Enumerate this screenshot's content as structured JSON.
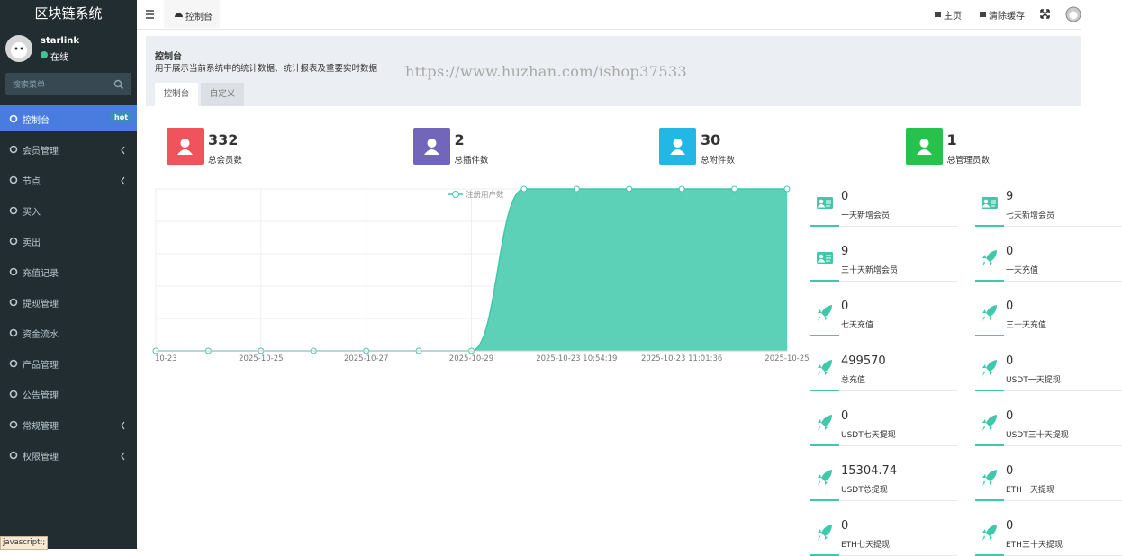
{
  "sidebar": {
    "brand": "区块链系统",
    "user": {
      "name": "starlink",
      "status": "在线"
    },
    "search_placeholder": "搜索菜单",
    "menu": [
      {
        "label": "控制台",
        "badge": "hot",
        "active": true
      },
      {
        "label": "会员管理",
        "submenu": true
      },
      {
        "label": "节点",
        "submenu": true
      },
      {
        "label": "买入"
      },
      {
        "label": "卖出"
      },
      {
        "label": "充值记录"
      },
      {
        "label": "提现管理"
      },
      {
        "label": "资金流水"
      },
      {
        "label": "产品管理"
      },
      {
        "label": "公告管理"
      },
      {
        "label": "常规管理",
        "submenu": true
      },
      {
        "label": "权限管理",
        "submenu": true
      }
    ]
  },
  "topbar": {
    "tab": "控制台",
    "links": [
      "主页",
      "清除缓存"
    ]
  },
  "header": {
    "title": "控制台",
    "description": "用于展示当前系统中的统计数据、统计报表及重要实时数据",
    "watermark": "https://www.huzhan.com/ishop37533",
    "tabs": [
      "控制台",
      "自定义"
    ]
  },
  "stats": [
    {
      "value": 332,
      "label": "总会员数",
      "color": "#f0535b"
    },
    {
      "value": 2,
      "label": "总插件数",
      "color": "#7266ba"
    },
    {
      "value": 30,
      "label": "总附件数",
      "color": "#23b7e5"
    },
    {
      "value": 1,
      "label": "总管理员数",
      "color": "#27c24c"
    }
  ],
  "chart": {
    "type": "area",
    "categories": [
      "10-23",
      null,
      "2025-10-25",
      null,
      "2025-10-27",
      null,
      "2025-10-29",
      null,
      "2025-10-23 10:54:19",
      null,
      "2025-10-23 11:01:36",
      null,
      "2025-10-25"
    ],
    "series": [
      {
        "name": "注册用户数",
        "color": "#3fc9aa",
        "values": [
          0,
          0,
          0,
          0,
          0,
          0,
          0,
          9,
          9,
          9,
          9,
          9,
          9
        ]
      }
    ],
    "ylim": [
      0,
      9
    ],
    "grid": true
  },
  "cards": [
    {
      "value": 0,
      "label": "一天新增会员",
      "icon": "card"
    },
    {
      "value": 9,
      "label": "七天新增会员",
      "icon": "card"
    },
    {
      "value": 9,
      "label": "三十天新增会员",
      "icon": "card"
    },
    {
      "value": 0,
      "label": "一天充值",
      "icon": "rocket"
    },
    {
      "value": 0,
      "label": "七天充值",
      "icon": "rocket"
    },
    {
      "value": 0,
      "label": "三十天充值",
      "icon": "rocket"
    },
    {
      "value": 499570,
      "label": "总充值",
      "icon": "rocket"
    },
    {
      "value": 0,
      "label": "USDT一天提现",
      "icon": "rocket"
    },
    {
      "value": 0,
      "label": "USDT七天提现",
      "icon": "rocket"
    },
    {
      "value": 0,
      "label": "USDT三十天提现",
      "icon": "rocket"
    },
    {
      "value": 15304.74,
      "label": "USDT总提现",
      "icon": "rocket"
    },
    {
      "value": 0,
      "label": "ETH一天提现",
      "icon": "rocket"
    },
    {
      "value": 0,
      "label": "ETH七天提现",
      "icon": "rocket"
    },
    {
      "value": 0,
      "label": "ETH三十天提现",
      "icon": "rocket"
    }
  ],
  "statusbar": "javascript:;"
}
